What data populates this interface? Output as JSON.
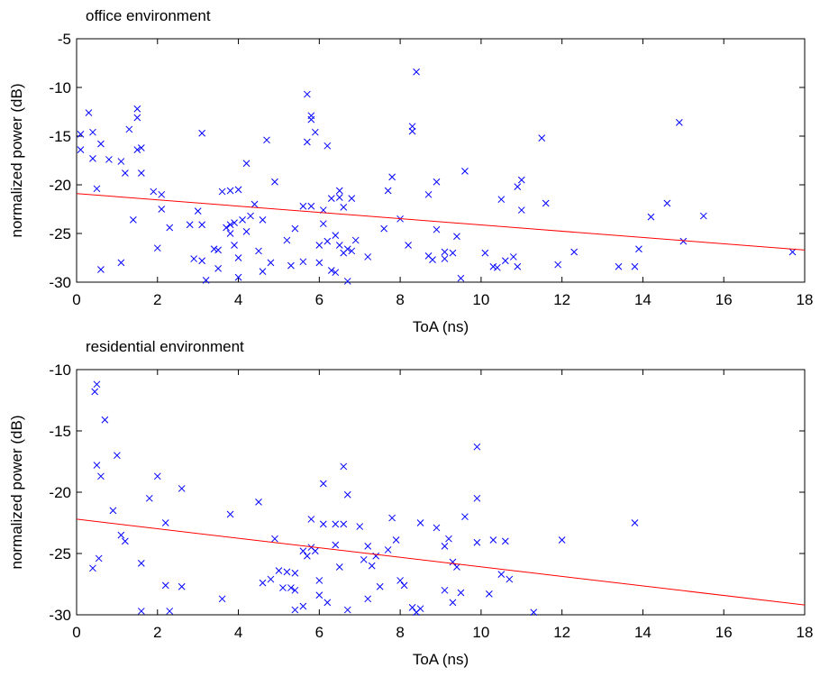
{
  "chart_data": [
    {
      "type": "scatter",
      "title": "office environment",
      "xlabel": "ToA (ns)",
      "ylabel": "normalized power (dB)",
      "xlim": [
        0,
        18
      ],
      "ylim": [
        -30,
        -5
      ],
      "xticks": [
        0,
        2,
        4,
        6,
        8,
        10,
        12,
        14,
        16,
        18
      ],
      "yticks": [
        -30,
        -25,
        -20,
        -15,
        -10,
        -5
      ],
      "series": [
        {
          "kind": "points",
          "color": "#0000ff",
          "x": [
            0.1,
            0.1,
            0.3,
            0.4,
            0.4,
            0.5,
            0.6,
            0.6,
            0.8,
            1.1,
            1.1,
            1.2,
            1.3,
            1.4,
            1.5,
            1.5,
            1.5,
            1.6,
            1.6,
            1.9,
            2.0,
            2.1,
            2.1,
            2.3,
            2.8,
            2.9,
            3.0,
            3.1,
            3.1,
            3.1,
            3.2,
            3.4,
            3.5,
            3.5,
            3.6,
            3.7,
            3.8,
            3.8,
            3.8,
            3.9,
            3.9,
            4.0,
            4.0,
            4.0,
            4.1,
            4.2,
            4.2,
            4.3,
            4.4,
            4.5,
            4.6,
            4.6,
            4.7,
            4.8,
            4.9,
            5.2,
            5.3,
            5.4,
            5.6,
            5.6,
            5.7,
            5.7,
            5.8,
            5.8,
            5.8,
            5.9,
            6.0,
            6.0,
            6.1,
            6.1,
            6.2,
            6.2,
            6.3,
            6.3,
            6.4,
            6.4,
            6.5,
            6.5,
            6.5,
            6.6,
            6.6,
            6.7,
            6.7,
            6.8,
            6.8,
            6.9,
            7.2,
            7.6,
            7.7,
            7.8,
            8.0,
            8.2,
            8.3,
            8.3,
            8.4,
            8.7,
            8.7,
            8.8,
            8.9,
            8.9,
            9.1,
            9.1,
            9.3,
            9.4,
            9.5,
            9.6,
            10.1,
            10.3,
            10.4,
            10.5,
            10.6,
            10.8,
            10.9,
            10.9,
            11.0,
            11.0,
            11.5,
            11.6,
            11.9,
            12.3,
            13.4,
            13.8,
            13.9,
            14.2,
            14.6,
            14.9,
            15.0,
            15.5,
            17.7
          ],
          "values": [
            -14.8,
            -16.4,
            -12.6,
            -14.6,
            -17.3,
            -20.4,
            -15.8,
            -28.7,
            -17.4,
            -17.6,
            -28.0,
            -18.8,
            -14.3,
            -23.6,
            -13.1,
            -12.2,
            -16.4,
            -16.2,
            -18.8,
            -20.7,
            -26.5,
            -21.0,
            -22.5,
            -24.4,
            -24.1,
            -27.6,
            -22.7,
            -14.7,
            -24.1,
            -27.8,
            -29.8,
            -26.6,
            -26.7,
            -28.6,
            -20.7,
            -24.4,
            -20.6,
            -24.1,
            -25.0,
            -23.9,
            -26.2,
            -20.5,
            -27.5,
            -29.5,
            -23.6,
            -24.8,
            -17.8,
            -23.2,
            -22.0,
            -26.8,
            -23.6,
            -28.9,
            -15.4,
            -28.0,
            -19.7,
            -25.7,
            -28.3,
            -24.5,
            -27.9,
            -22.2,
            -15.6,
            -10.7,
            -13.3,
            -12.9,
            -22.2,
            -14.6,
            -26.2,
            -28.0,
            -24.0,
            -22.6,
            -25.8,
            -16.0,
            -21.4,
            -28.8,
            -29.0,
            -25.2,
            -20.6,
            -21.3,
            -26.2,
            -22.3,
            -27.0,
            -26.6,
            -29.9,
            -21.4,
            -26.8,
            -25.7,
            -27.4,
            -24.5,
            -20.6,
            -19.2,
            -23.5,
            -26.2,
            -14.5,
            -14.0,
            -8.4,
            -21.0,
            -27.3,
            -27.7,
            -19.7,
            -24.6,
            -26.9,
            -27.6,
            -27.0,
            -25.3,
            -29.6,
            -18.6,
            -27.0,
            -28.4,
            -28.5,
            -21.5,
            -27.8,
            -27.4,
            -20.2,
            -28.4,
            -22.6,
            -19.5,
            -15.2,
            -21.9,
            -28.2,
            -26.9,
            -28.4,
            -28.4,
            -26.6,
            -23.3,
            -21.9,
            -13.6,
            -25.8,
            -23.2,
            -26.9
          ]
        },
        {
          "kind": "line",
          "color": "#ff0000",
          "x": [
            0,
            18
          ],
          "values": [
            -20.9,
            -26.7
          ]
        }
      ]
    },
    {
      "type": "scatter",
      "title": "residential environment",
      "xlabel": "ToA (ns)",
      "ylabel": "normalized power (dB)",
      "xlim": [
        0,
        18
      ],
      "ylim": [
        -30,
        -10
      ],
      "xticks": [
        0,
        2,
        4,
        6,
        8,
        10,
        12,
        14,
        16,
        18
      ],
      "yticks": [
        -30,
        -25,
        -20,
        -15,
        -10
      ],
      "series": [
        {
          "kind": "points",
          "color": "#0000ff",
          "x": [
            0.4,
            0.45,
            0.5,
            0.5,
            0.55,
            0.6,
            0.7,
            0.9,
            1.0,
            1.1,
            1.2,
            1.6,
            1.6,
            1.8,
            2.0,
            2.2,
            2.2,
            2.3,
            2.6,
            2.6,
            3.6,
            3.8,
            4.5,
            4.6,
            4.8,
            4.9,
            5.0,
            5.1,
            5.2,
            5.3,
            5.4,
            5.4,
            5.4,
            5.6,
            5.6,
            5.7,
            5.8,
            5.8,
            5.9,
            6.0,
            6.0,
            6.1,
            6.1,
            6.2,
            6.4,
            6.4,
            6.5,
            6.6,
            6.6,
            6.7,
            6.7,
            7.0,
            7.1,
            7.2,
            7.2,
            7.3,
            7.4,
            7.5,
            7.7,
            7.8,
            7.9,
            8.0,
            8.1,
            8.3,
            8.4,
            8.5,
            8.5,
            8.9,
            9.1,
            9.1,
            9.2,
            9.3,
            9.3,
            9.4,
            9.5,
            9.6,
            9.9,
            9.9,
            9.9,
            10.2,
            10.3,
            10.5,
            10.6,
            10.7,
            11.3,
            12.0,
            13.8
          ],
          "values": [
            -26.2,
            -11.8,
            -11.2,
            -17.8,
            -25.4,
            -18.7,
            -14.1,
            -21.5,
            -17.0,
            -23.5,
            -24.0,
            -29.7,
            -25.8,
            -20.5,
            -18.7,
            -22.5,
            -27.6,
            -29.7,
            -19.7,
            -27.7,
            -28.7,
            -21.8,
            -20.8,
            -27.4,
            -27.1,
            -23.8,
            -26.4,
            -27.8,
            -26.5,
            -27.8,
            -29.6,
            -28.0,
            -26.6,
            -24.8,
            -29.3,
            -25.2,
            -24.5,
            -22.2,
            -24.8,
            -28.4,
            -27.2,
            -22.6,
            -19.3,
            -29.0,
            -24.3,
            -22.6,
            -26.1,
            -22.6,
            -17.9,
            -20.2,
            -29.6,
            -22.8,
            -25.5,
            -28.7,
            -24.4,
            -26.0,
            -25.2,
            -27.7,
            -24.7,
            -22.1,
            -23.9,
            -27.2,
            -27.6,
            -29.4,
            -29.8,
            -29.5,
            -22.5,
            -22.9,
            -28.0,
            -24.4,
            -23.8,
            -29.0,
            -25.7,
            -26.1,
            -28.2,
            -22.0,
            -16.3,
            -20.5,
            -24.1,
            -28.3,
            -23.9,
            -26.7,
            -24.0,
            -27.1,
            -29.8,
            -23.9,
            -22.5
          ]
        },
        {
          "kind": "line",
          "color": "#ff0000",
          "x": [
            0,
            18
          ],
          "values": [
            -22.2,
            -29.2
          ]
        }
      ]
    }
  ]
}
